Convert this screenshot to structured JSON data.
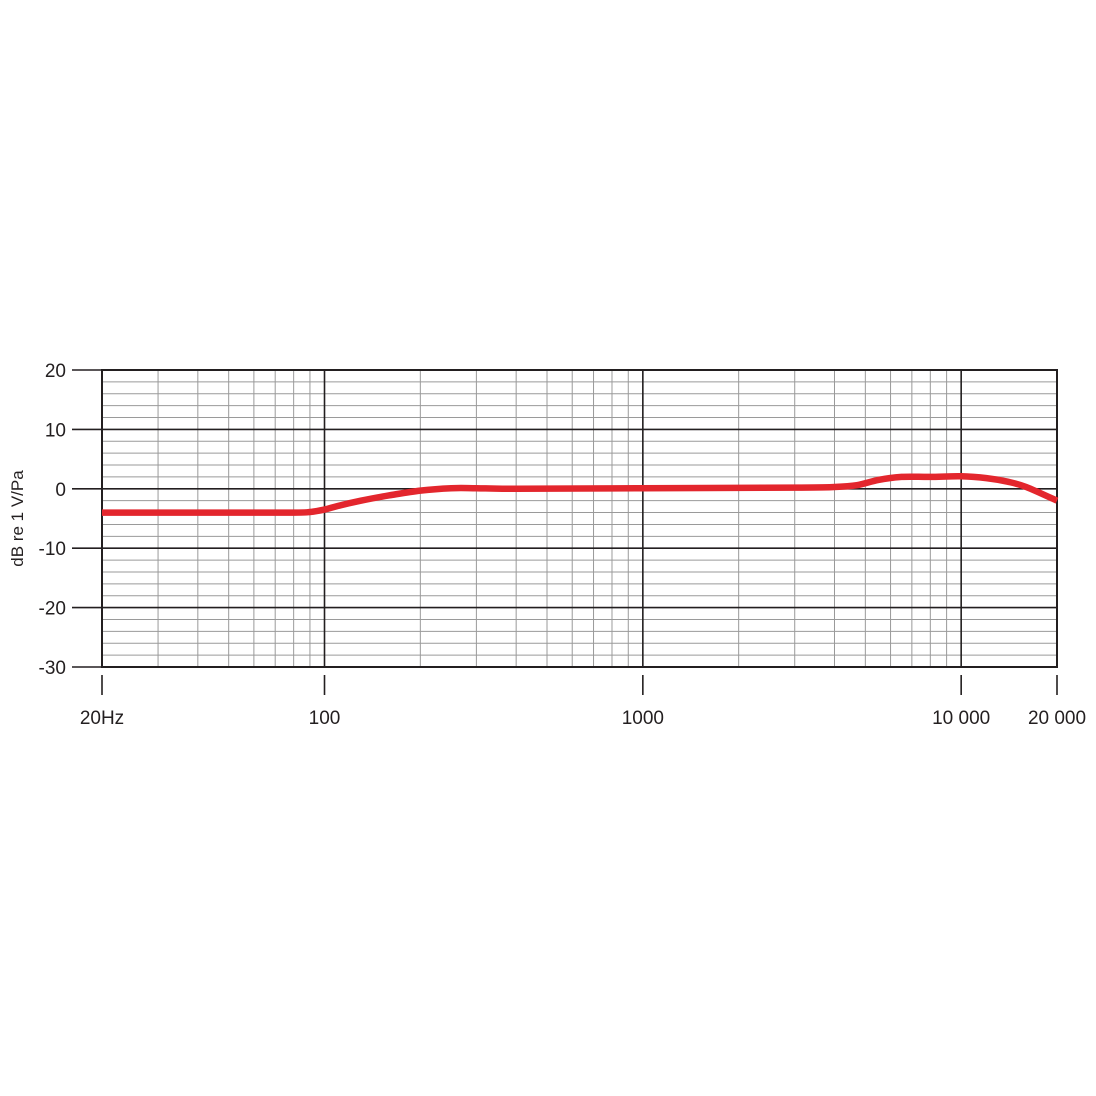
{
  "chart_data": {
    "type": "line",
    "title": "",
    "xlabel": "",
    "ylabel": "dB re 1 V/Pa",
    "x_scale": "log",
    "xlim": [
      20,
      20000
    ],
    "ylim": [
      -30,
      20
    ],
    "grid": true,
    "x_ticks": [
      {
        "value": 20,
        "label": "20Hz"
      },
      {
        "value": 100,
        "label": "100"
      },
      {
        "value": 1000,
        "label": "1000"
      },
      {
        "value": 10000,
        "label": "10 000"
      },
      {
        "value": 20000,
        "label": "20 000"
      }
    ],
    "y_ticks": [
      {
        "value": 20,
        "label": "20"
      },
      {
        "value": 10,
        "label": "10"
      },
      {
        "value": 0,
        "label": "0"
      },
      {
        "value": -10,
        "label": "-10"
      },
      {
        "value": -20,
        "label": "-20"
      },
      {
        "value": -30,
        "label": "-30"
      }
    ],
    "series": [
      {
        "color": "#e3262d",
        "x": [
          20,
          50,
          80,
          90,
          100,
          110,
          130,
          160,
          200,
          250,
          300,
          400,
          1000,
          3000,
          4000,
          4700,
          5500,
          6500,
          8000,
          10000,
          12000,
          14000,
          16000,
          20000
        ],
        "y": [
          -4,
          -4,
          -4,
          -3.9,
          -3.5,
          -2.9,
          -2.0,
          -1.1,
          -0.3,
          0.1,
          0.1,
          0.0,
          0.1,
          0.2,
          0.3,
          0.6,
          1.5,
          2.0,
          2.0,
          2.1,
          1.8,
          1.2,
          0.3,
          -2.0
        ]
      }
    ]
  }
}
